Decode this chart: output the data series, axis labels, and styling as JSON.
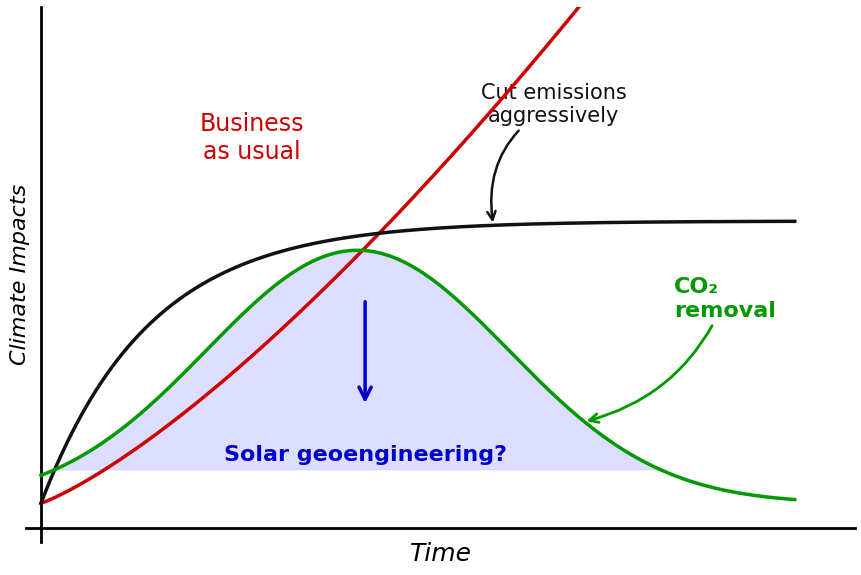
{
  "title": "",
  "xlabel": "Time",
  "ylabel": "Climate Impacts",
  "background_color": "#ffffff",
  "bau_color": "#cc0000",
  "aggressive_color": "#111111",
  "co2_color": "#009900",
  "solar_fill_color": "#ccccff",
  "solar_fill_alpha": 0.65,
  "solar_text_color": "#0000cc",
  "arrow_color": "#0000cc",
  "xlabel_style": "italic",
  "ylabel_style": "italic",
  "xlabel_fontsize": 18,
  "ylabel_fontsize": 16,
  "annotation_fontsize": 15,
  "bau_label": "Business\nas usual",
  "aggressive_label": "Cut emissions\naggressively",
  "co2_label": "CO₂\nremoval",
  "solar_label": "Solar geoengineering?"
}
